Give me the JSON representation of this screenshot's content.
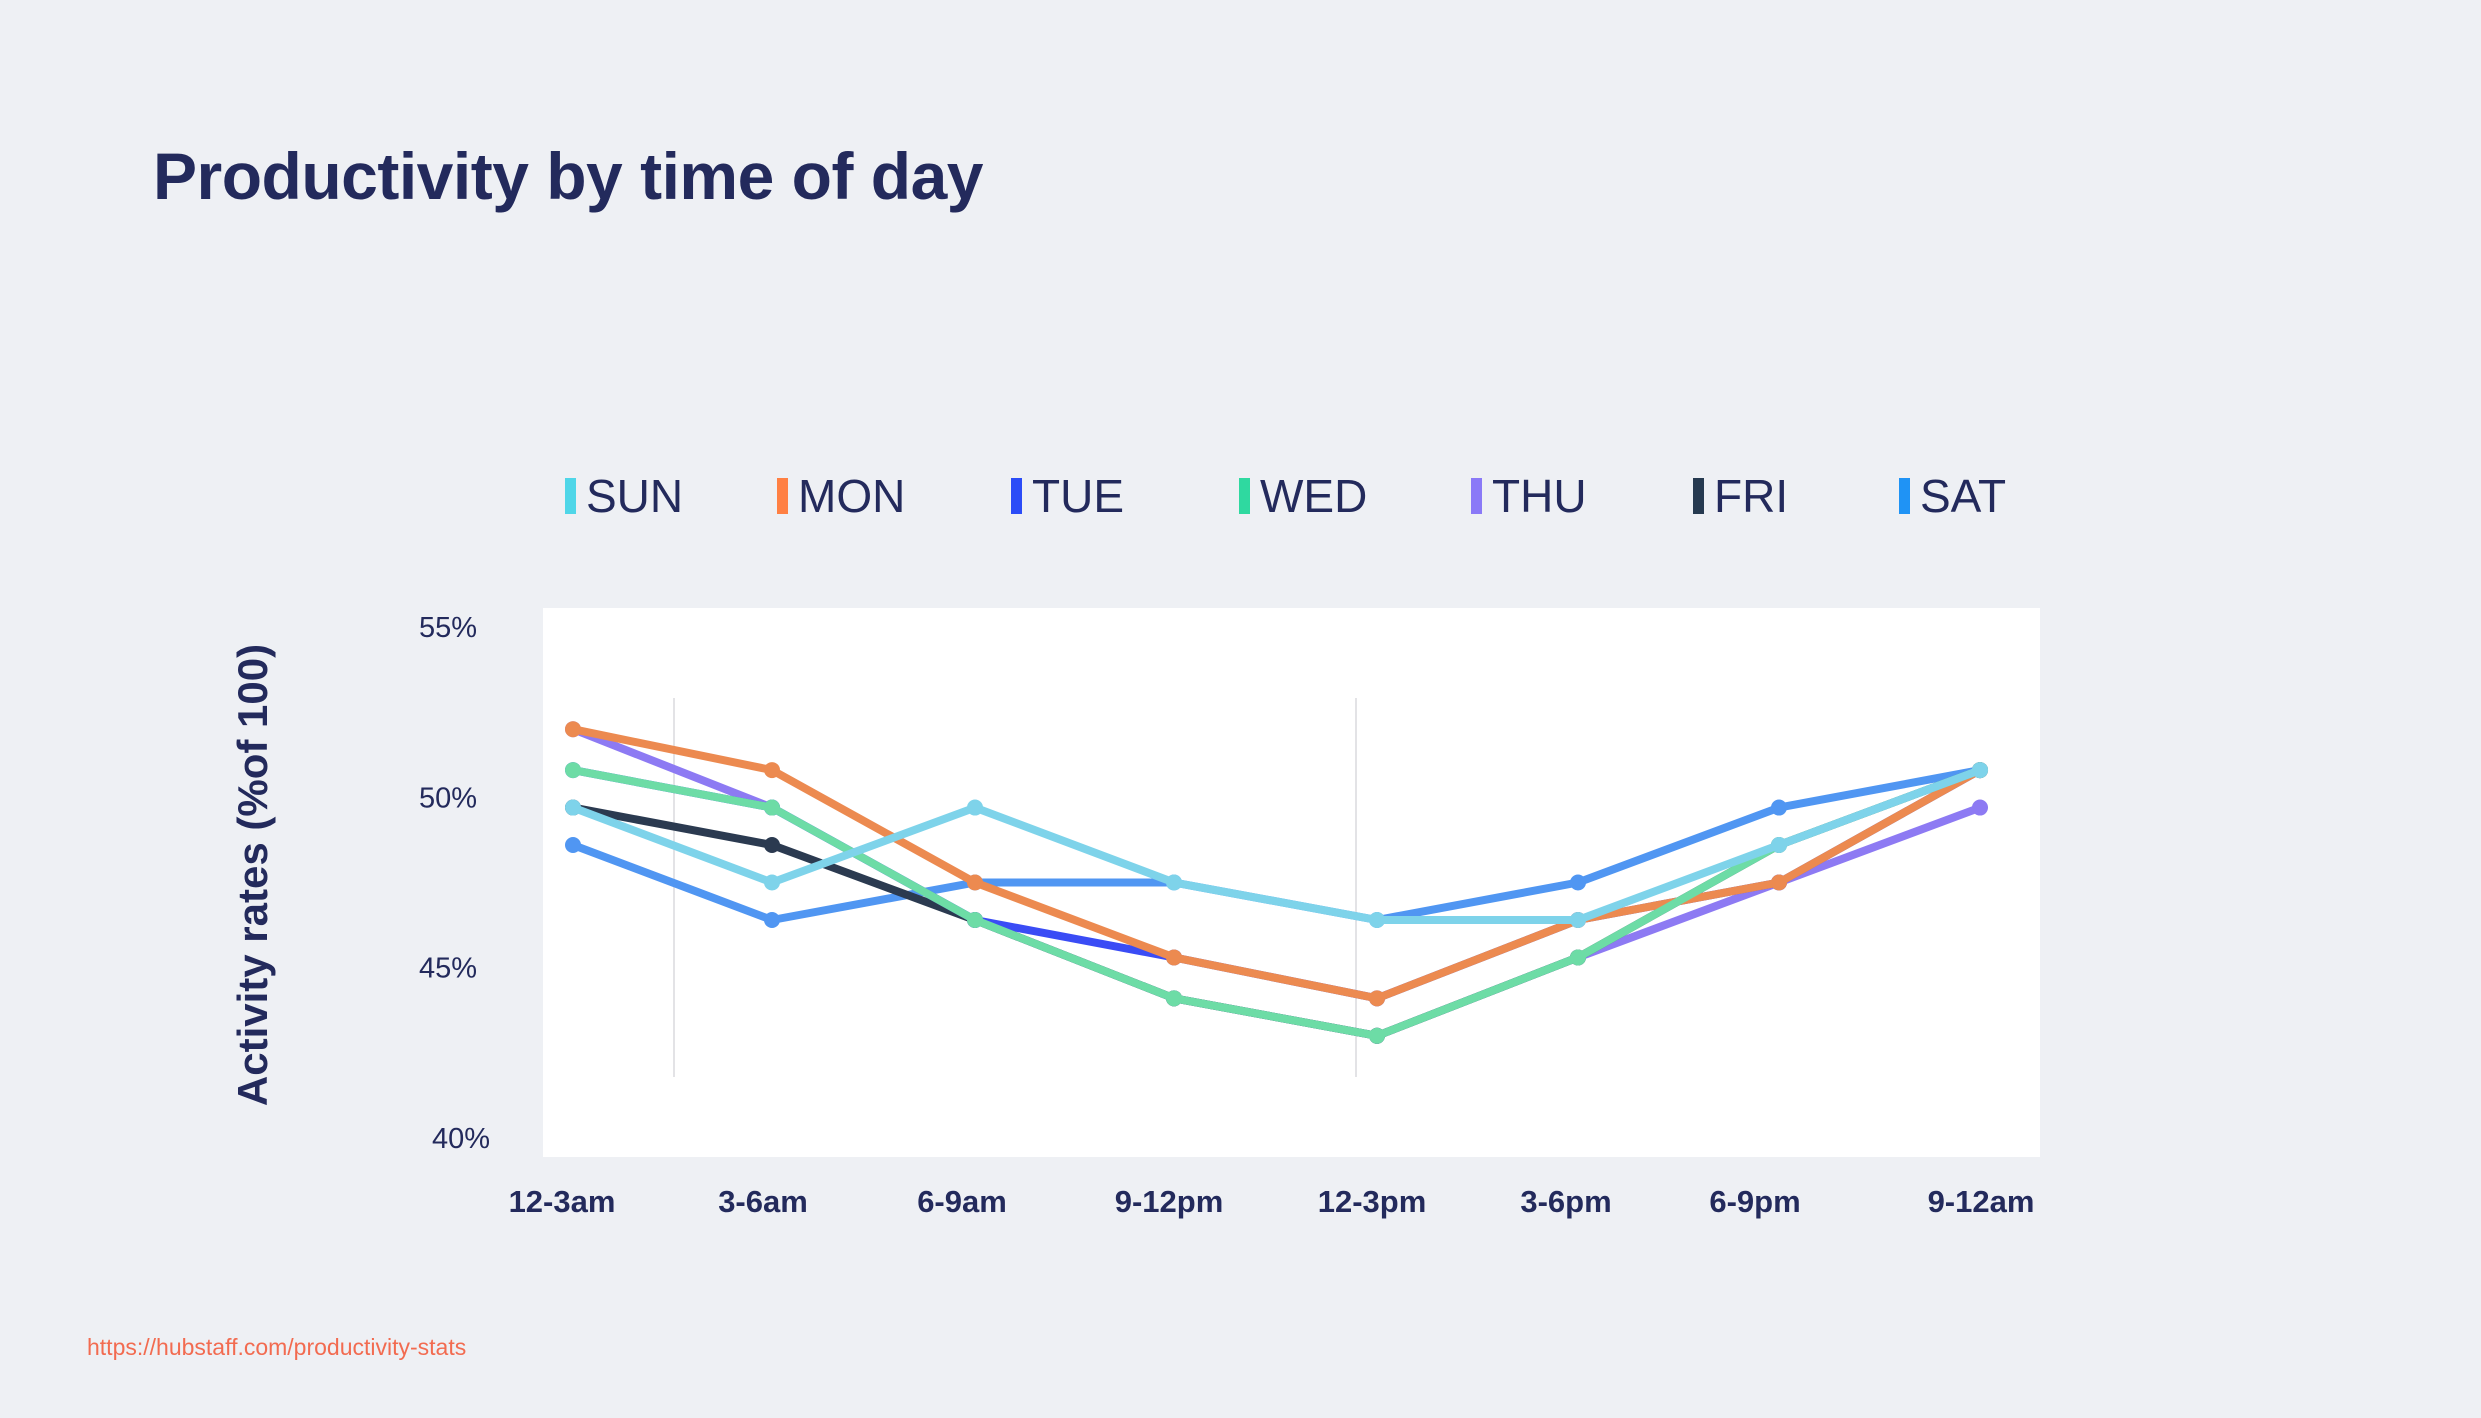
{
  "title": "Productivity by time of day",
  "footer": "https://hubstaff.com/productivity-stats",
  "chart_data": {
    "type": "line",
    "ylabel": "Activity rates (%of 100)",
    "xlabel": "",
    "categories": [
      "12-3am",
      "3-6am",
      "6-9am",
      "9-12pm",
      "12-3pm",
      "3-6pm",
      "6-9pm",
      "9-12am"
    ],
    "yticks": [
      "55%",
      "50%",
      "45%",
      "40%"
    ],
    "ytick_values": [
      55,
      50,
      45,
      40
    ],
    "ylim": [
      40,
      55
    ],
    "grid": "two faint vertical lines",
    "legend_position": "top",
    "series": [
      {
        "name": "SUN",
        "legend_color": "#4fd6e8",
        "color": "#7ed3ea",
        "values": [
          49.7,
          47.5,
          49.7,
          47.5,
          46.4,
          46.4,
          48.6,
          50.8
        ]
      },
      {
        "name": "MON",
        "legend_color": "#ff8043",
        "color": "#ec8a50",
        "values": [
          52.0,
          50.8,
          47.5,
          45.3,
          44.1,
          46.4,
          47.5,
          50.8
        ]
      },
      {
        "name": "TUE",
        "legend_color": "#2b4cf7",
        "color": "#3a4cf5",
        "values": [
          50.8,
          49.7,
          46.4,
          45.3,
          44.1,
          46.4,
          47.5,
          50.8
        ]
      },
      {
        "name": "WED",
        "legend_color": "#2fd9a0",
        "color": "#6ddca6",
        "values": [
          50.8,
          49.7,
          46.4,
          44.1,
          43.0,
          45.3,
          48.6,
          50.8
        ]
      },
      {
        "name": "THU",
        "legend_color": "#8a79f7",
        "color": "#8d7af3",
        "values": [
          52.0,
          49.7,
          46.4,
          44.1,
          43.0,
          45.3,
          47.5,
          49.7
        ]
      },
      {
        "name": "FRI",
        "legend_color": "#263a50",
        "color": "#2b3a50",
        "values": [
          49.7,
          48.6,
          46.4,
          44.1,
          43.0,
          45.3,
          48.6,
          50.8
        ]
      },
      {
        "name": "SAT",
        "legend_color": "#1f93f5",
        "color": "#5096f2",
        "values": [
          48.6,
          46.4,
          47.5,
          47.5,
          46.4,
          47.5,
          49.7,
          50.8
        ]
      }
    ]
  }
}
